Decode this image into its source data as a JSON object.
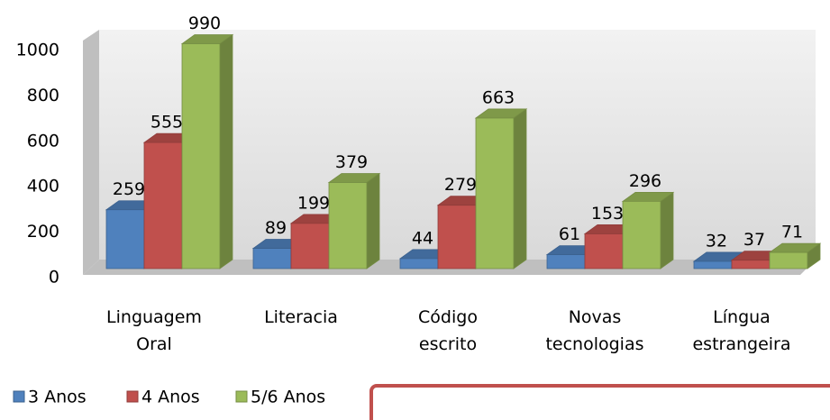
{
  "chart_data": {
    "type": "bar",
    "categories": [
      "Linguagem Oral",
      "Literacia",
      "Código escrito",
      "Novas tecnologias",
      "Língua estrangeira"
    ],
    "series": [
      {
        "name": "3 Anos",
        "color": "#4f81bd",
        "values": [
          259,
          89,
          44,
          61,
          32
        ]
      },
      {
        "name": "4 Anos",
        "color": "#c0504d",
        "values": [
          555,
          199,
          279,
          153,
          37
        ]
      },
      {
        "name": "5/6 Anos",
        "color": "#9bbb59",
        "values": [
          990,
          379,
          663,
          296,
          71
        ]
      }
    ],
    "ylim": [
      0,
      1000
    ],
    "yticks": [
      0,
      200,
      400,
      600,
      800,
      1000
    ],
    "grid": false,
    "legend": "bottom-left"
  }
}
